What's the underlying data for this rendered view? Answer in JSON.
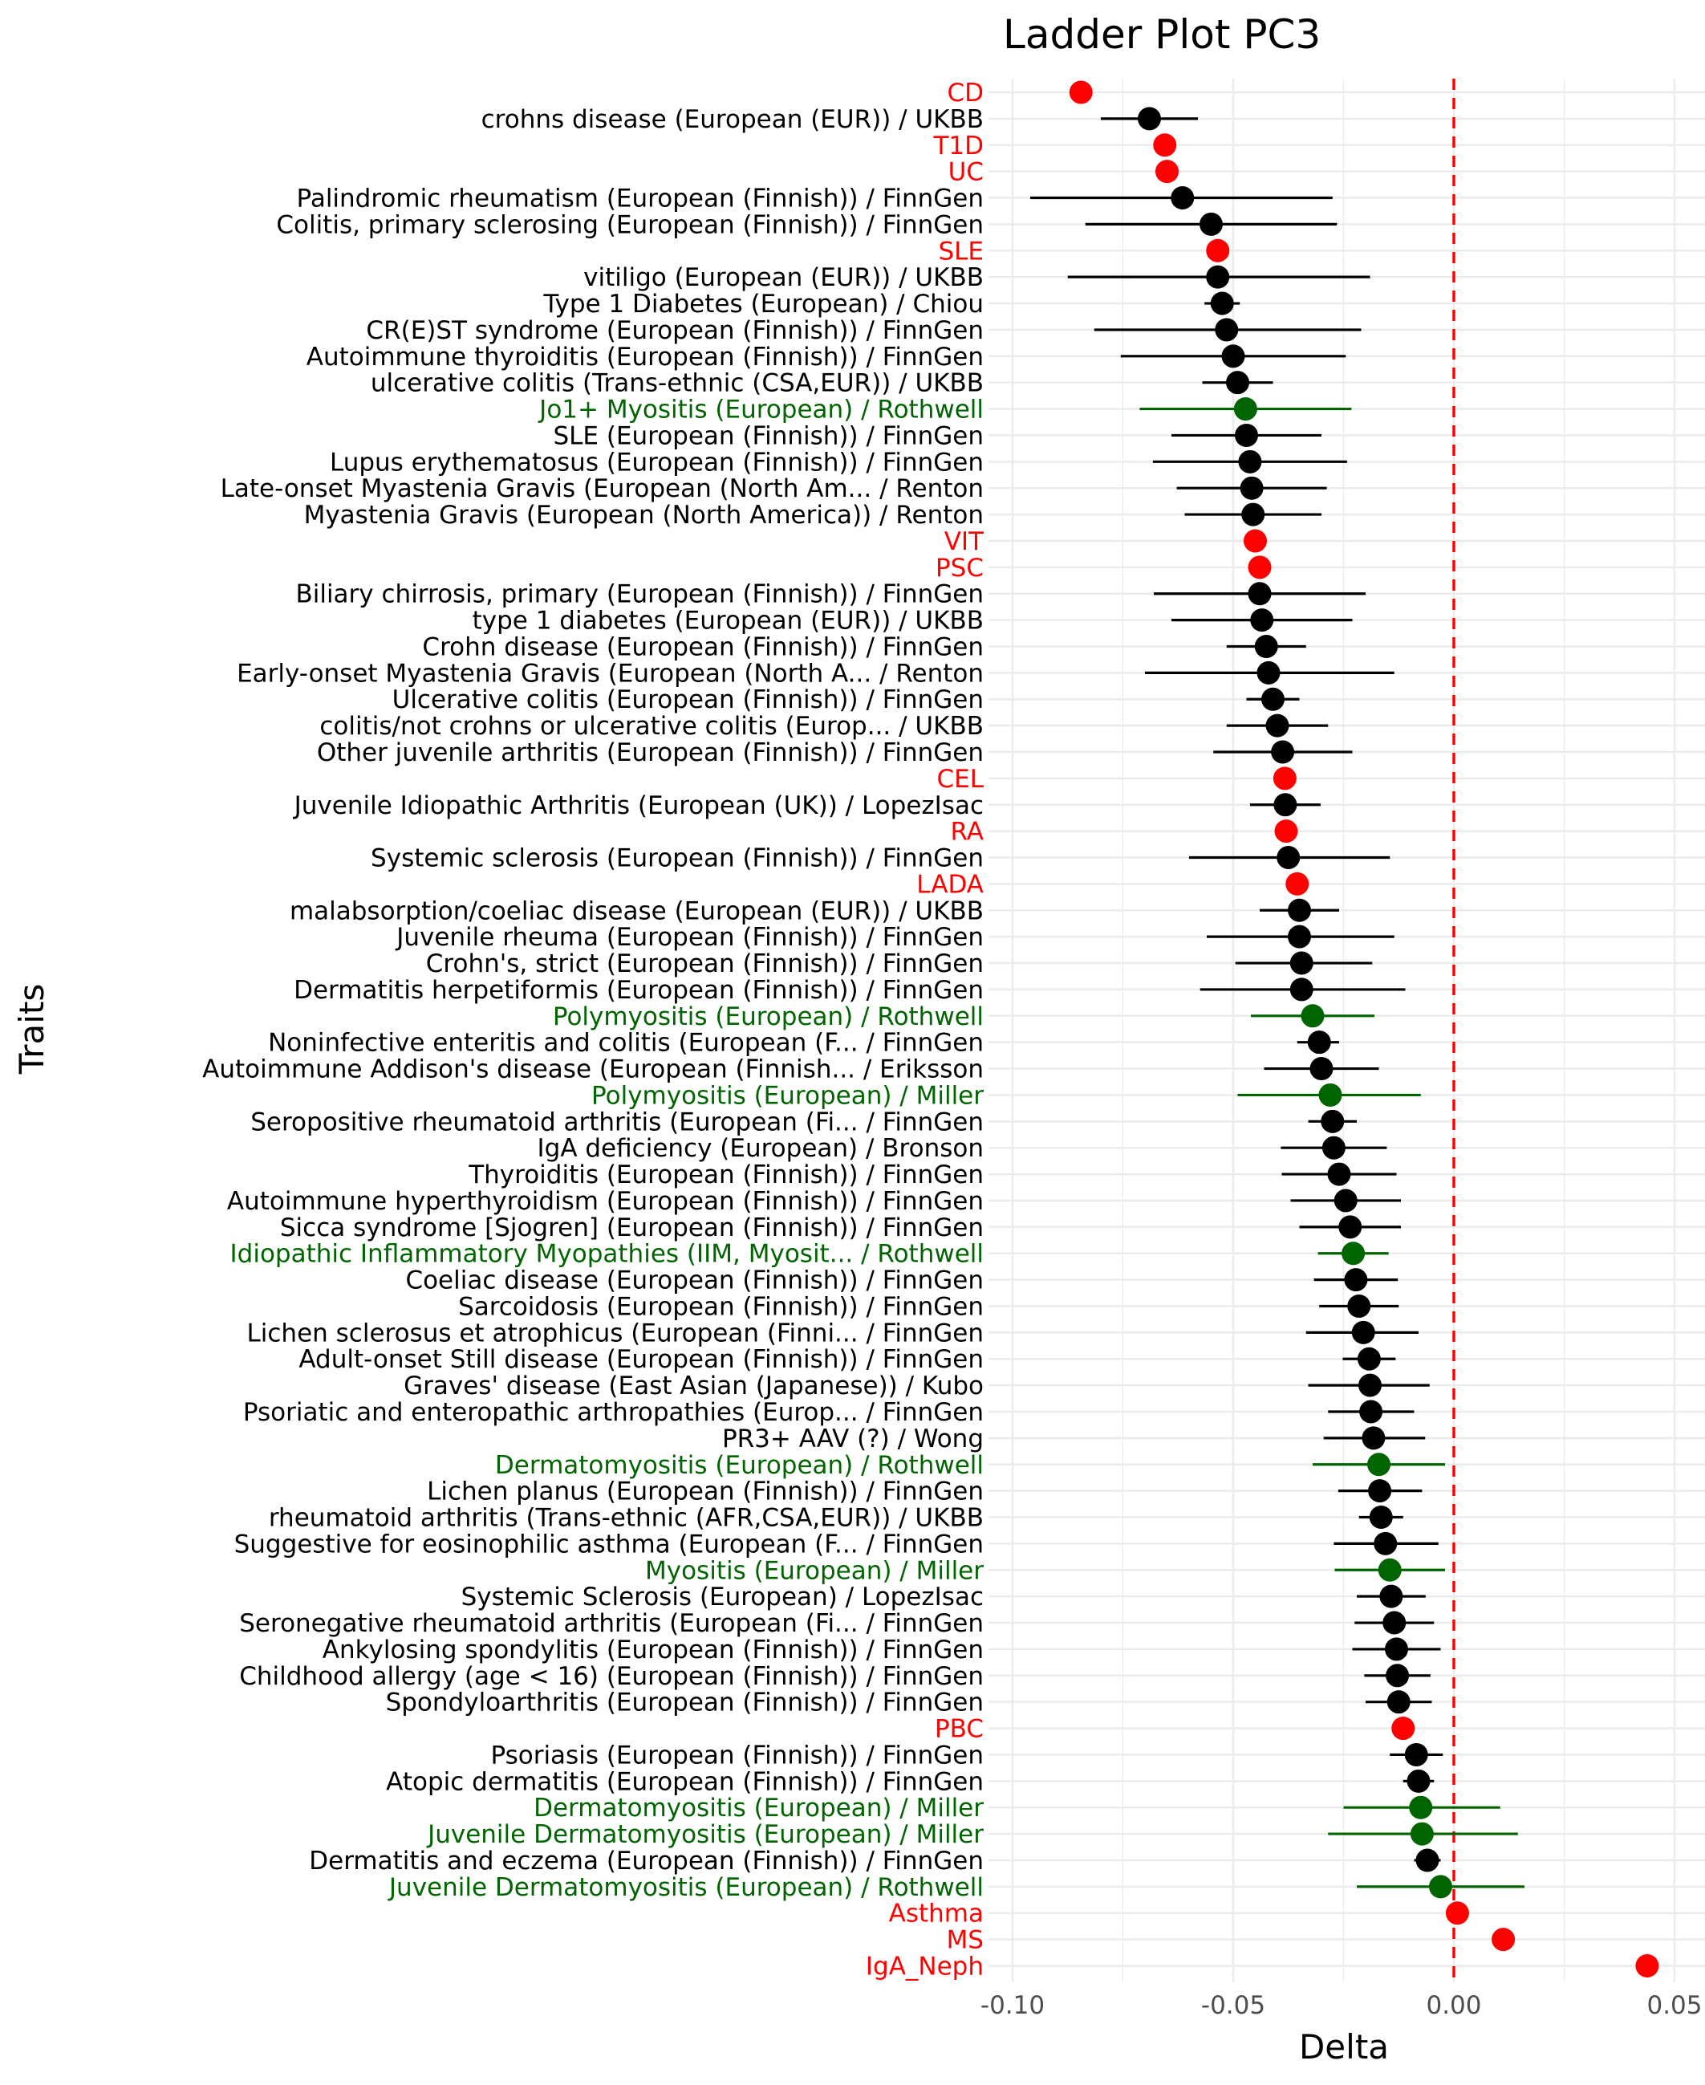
{
  "chart_data": {
    "type": "scatter",
    "title": "Ladder Plot PC3",
    "xlabel": "Delta",
    "ylabel": "Traits",
    "xlim": [
      -0.1,
      0.05
    ],
    "xticks": [
      -0.1,
      -0.05,
      0.0,
      0.05
    ],
    "xtick_labels": [
      "-0.10",
      "-0.05",
      "0.00",
      "0.05"
    ],
    "reference_line": {
      "x": 0.0,
      "color": "#ff0000",
      "style": "dashed"
    },
    "grid": true,
    "group_colors": {
      "red": "#ff0000",
      "black": "#000000",
      "green": "#006400"
    },
    "points": [
      {
        "label": "CD",
        "x": -0.0845,
        "lo": null,
        "hi": null,
        "color": "red"
      },
      {
        "label": "crohns disease (European (EUR)) / UKBB",
        "x": -0.069,
        "lo": -0.08,
        "hi": -0.058,
        "color": "black"
      },
      {
        "label": "T1D",
        "x": -0.0655,
        "lo": null,
        "hi": null,
        "color": "red"
      },
      {
        "label": "UC",
        "x": -0.065,
        "lo": null,
        "hi": null,
        "color": "red"
      },
      {
        "label": "Palindromic rheumatism (European (Finnish)) / FinnGen",
        "x": -0.0615,
        "lo": -0.096,
        "hi": -0.0275,
        "color": "black"
      },
      {
        "label": "Colitis, primary sclerosing (European (Finnish)) / FinnGen",
        "x": -0.055,
        "lo": -0.0835,
        "hi": -0.0265,
        "color": "black"
      },
      {
        "label": "SLE",
        "x": -0.0535,
        "lo": null,
        "hi": null,
        "color": "red"
      },
      {
        "label": "vitiligo (European (EUR)) / UKBB",
        "x": -0.0535,
        "lo": -0.0875,
        "hi": -0.019,
        "color": "black"
      },
      {
        "label": "Type 1 Diabetes (European) / Chiou",
        "x": -0.0525,
        "lo": -0.0565,
        "hi": -0.0485,
        "color": "black"
      },
      {
        "label": "CR(E)ST syndrome (European (Finnish)) / FinnGen",
        "x": -0.0515,
        "lo": -0.0815,
        "hi": -0.021,
        "color": "black"
      },
      {
        "label": "Autoimmune thyroiditis (European (Finnish)) / FinnGen",
        "x": -0.05,
        "lo": -0.0755,
        "hi": -0.0245,
        "color": "black"
      },
      {
        "label": "ulcerative colitis (Trans-ethnic (CSA,EUR)) / UKBB",
        "x": -0.049,
        "lo": -0.057,
        "hi": -0.041,
        "color": "black"
      },
      {
        "label": "Jo1+ Myositis (European) / Rothwell",
        "x": -0.0472,
        "lo": -0.0712,
        "hi": -0.0232,
        "color": "green"
      },
      {
        "label": "SLE (European (Finnish)) / FinnGen",
        "x": -0.047,
        "lo": -0.064,
        "hi": -0.03,
        "color": "black"
      },
      {
        "label": "Lupus erythematosus (European (Finnish)) / FinnGen",
        "x": -0.0462,
        "lo": -0.0682,
        "hi": -0.0242,
        "color": "black"
      },
      {
        "label": "Late-onset Myastenia Gravis (European (North Am... / Renton",
        "x": -0.0458,
        "lo": -0.0628,
        "hi": -0.0288,
        "color": "black"
      },
      {
        "label": "Myastenia Gravis (European (North America)) / Renton",
        "x": -0.0455,
        "lo": -0.061,
        "hi": -0.03,
        "color": "black"
      },
      {
        "label": "VIT",
        "x": -0.045,
        "lo": null,
        "hi": null,
        "color": "red"
      },
      {
        "label": "PSC",
        "x": -0.044,
        "lo": null,
        "hi": null,
        "color": "red"
      },
      {
        "label": "Biliary chirrosis, primary (European (Finnish)) / FinnGen",
        "x": -0.044,
        "lo": -0.068,
        "hi": -0.02,
        "color": "black"
      },
      {
        "label": "type 1 diabetes (European (EUR)) / UKBB",
        "x": -0.0435,
        "lo": -0.064,
        "hi": -0.023,
        "color": "black"
      },
      {
        "label": "Crohn disease (European (Finnish)) / FinnGen",
        "x": -0.0425,
        "lo": -0.0515,
        "hi": -0.0335,
        "color": "black"
      },
      {
        "label": "Early-onset Myastenia Gravis (European (North A... / Renton",
        "x": -0.042,
        "lo": -0.07,
        "hi": -0.0135,
        "color": "black"
      },
      {
        "label": "Ulcerative colitis (European (Finnish)) / FinnGen",
        "x": -0.041,
        "lo": -0.047,
        "hi": -0.035,
        "color": "black"
      },
      {
        "label": "colitis/not crohns or ulcerative colitis (Europ... / UKBB",
        "x": -0.04,
        "lo": -0.0515,
        "hi": -0.0285,
        "color": "black"
      },
      {
        "label": "Other juvenile arthritis (European (Finnish)) / FinnGen",
        "x": -0.0388,
        "lo": -0.0545,
        "hi": -0.023,
        "color": "black"
      },
      {
        "label": "CEL",
        "x": -0.0383,
        "lo": null,
        "hi": null,
        "color": "red"
      },
      {
        "label": "Juvenile Idiopathic Arthritis (European (UK)) / LopezIsac",
        "x": -0.0382,
        "lo": -0.0462,
        "hi": -0.0302,
        "color": "black"
      },
      {
        "label": "RA",
        "x": -0.038,
        "lo": null,
        "hi": null,
        "color": "red"
      },
      {
        "label": "Systemic sclerosis (European (Finnish)) / FinnGen",
        "x": -0.0375,
        "lo": -0.06,
        "hi": -0.0145,
        "color": "black"
      },
      {
        "label": "LADA",
        "x": -0.0355,
        "lo": null,
        "hi": null,
        "color": "red"
      },
      {
        "label": "malabsorption/coeliac disease (European (EUR)) / UKBB",
        "x": -0.035,
        "lo": -0.044,
        "hi": -0.026,
        "color": "black"
      },
      {
        "label": "Juvenile rheuma (European (Finnish)) / FinnGen",
        "x": -0.035,
        "lo": -0.056,
        "hi": -0.0135,
        "color": "black"
      },
      {
        "label": "Crohn's, strict (European (Finnish)) / FinnGen",
        "x": -0.0345,
        "lo": -0.0495,
        "hi": -0.0185,
        "color": "black"
      },
      {
        "label": "Dermatitis herpetiformis (European (Finnish)) / FinnGen",
        "x": -0.0345,
        "lo": -0.0575,
        "hi": -0.011,
        "color": "black"
      },
      {
        "label": "Polymyositis (European) / Rothwell",
        "x": -0.032,
        "lo": -0.046,
        "hi": -0.018,
        "color": "green"
      },
      {
        "label": "Noninfective enteritis and colitis (European (F... / FinnGen",
        "x": -0.0305,
        "lo": -0.0355,
        "hi": -0.026,
        "color": "black"
      },
      {
        "label": "Autoimmune Addison's disease (European (Finnish... / Eriksson",
        "x": -0.03,
        "lo": -0.043,
        "hi": -0.017,
        "color": "black"
      },
      {
        "label": "Polymyositis (European) / Miller",
        "x": -0.028,
        "lo": -0.049,
        "hi": -0.0075,
        "color": "green"
      },
      {
        "label": "Seropositive rheumatoid arthritis (European (Fi... / FinnGen",
        "x": -0.0275,
        "lo": -0.033,
        "hi": -0.022,
        "color": "black"
      },
      {
        "label": "IgA deficiency (European) / Bronson",
        "x": -0.0272,
        "lo": -0.0392,
        "hi": -0.0152,
        "color": "black"
      },
      {
        "label": "Thyroiditis (European (Finnish)) / FinnGen",
        "x": -0.026,
        "lo": -0.039,
        "hi": -0.013,
        "color": "black"
      },
      {
        "label": "Autoimmune hyperthyroidism (European (Finnish)) / FinnGen",
        "x": -0.0245,
        "lo": -0.037,
        "hi": -0.012,
        "color": "black"
      },
      {
        "label": "Sicca syndrome [Sjogren] (European (Finnish)) / FinnGen",
        "x": -0.0235,
        "lo": -0.035,
        "hi": -0.012,
        "color": "black"
      },
      {
        "label": "Idiopathic Inflammatory Myopathies (IIM, Myosit... / Rothwell",
        "x": -0.0228,
        "lo": -0.0308,
        "hi": -0.0148,
        "color": "green"
      },
      {
        "label": "Coeliac disease (European (Finnish)) / FinnGen",
        "x": -0.0222,
        "lo": -0.0317,
        "hi": -0.0127,
        "color": "black"
      },
      {
        "label": "Sarcoidosis (European (Finnish)) / FinnGen",
        "x": -0.0215,
        "lo": -0.0305,
        "hi": -0.0125,
        "color": "black"
      },
      {
        "label": "Lichen sclerosus et atrophicus (European (Finni... / FinnGen",
        "x": -0.0205,
        "lo": -0.0335,
        "hi": -0.008,
        "color": "black"
      },
      {
        "label": "Adult-onset Still disease (European (Finnish)) / FinnGen",
        "x": -0.0192,
        "lo": -0.0252,
        "hi": -0.0132,
        "color": "black"
      },
      {
        "label": "Graves' disease (East Asian (Japanese)) / Kubo",
        "x": -0.019,
        "lo": -0.033,
        "hi": -0.0055,
        "color": "black"
      },
      {
        "label": "Psoriatic and enteropathic arthropathies (Europ... / FinnGen",
        "x": -0.0188,
        "lo": -0.0285,
        "hi": -0.009,
        "color": "black"
      },
      {
        "label": "PR3+ AAV (?) / Wong",
        "x": -0.0182,
        "lo": -0.0295,
        "hi": -0.0065,
        "color": "black"
      },
      {
        "label": "Dermatomyositis (European) / Rothwell",
        "x": -0.017,
        "lo": -0.032,
        "hi": -0.002,
        "color": "green"
      },
      {
        "label": "Lichen planus (European (Finnish)) / FinnGen",
        "x": -0.0168,
        "lo": -0.0262,
        "hi": -0.0072,
        "color": "black"
      },
      {
        "label": "rheumatoid arthritis (Trans-ethnic (AFR,CSA,EUR)) / UKBB",
        "x": -0.0165,
        "lo": -0.0215,
        "hi": -0.0115,
        "color": "black"
      },
      {
        "label": "Suggestive for eosinophilic asthma (European (F... / FinnGen",
        "x": -0.0155,
        "lo": -0.0272,
        "hi": -0.0035,
        "color": "black"
      },
      {
        "label": "Myositis (European) / Miller",
        "x": -0.0145,
        "lo": -0.027,
        "hi": -0.002,
        "color": "green"
      },
      {
        "label": "Systemic Sclerosis (European) / LopezIsac",
        "x": -0.0142,
        "lo": -0.022,
        "hi": -0.0064,
        "color": "black"
      },
      {
        "label": "Seronegative rheumatoid arthritis (European (Fi... / FinnGen",
        "x": -0.0135,
        "lo": -0.0225,
        "hi": -0.0045,
        "color": "black"
      },
      {
        "label": "Ankylosing spondylitis (European (Finnish)) / FinnGen",
        "x": -0.013,
        "lo": -0.023,
        "hi": -0.003,
        "color": "black"
      },
      {
        "label": "Childhood allergy (age < 16) (European (Finnish)) / FinnGen",
        "x": -0.0128,
        "lo": -0.0203,
        "hi": -0.0053,
        "color": "black"
      },
      {
        "label": "Spondyloarthritis (European (Finnish)) / FinnGen",
        "x": -0.0125,
        "lo": -0.02,
        "hi": -0.005,
        "color": "black"
      },
      {
        "label": "PBC",
        "x": -0.0115,
        "lo": null,
        "hi": null,
        "color": "red"
      },
      {
        "label": "Psoriasis (European (Finnish)) / FinnGen",
        "x": -0.0085,
        "lo": -0.0145,
        "hi": -0.0025,
        "color": "black"
      },
      {
        "label": "Atopic dermatitis (European (Finnish)) / FinnGen",
        "x": -0.008,
        "lo": -0.0115,
        "hi": -0.0045,
        "color": "black"
      },
      {
        "label": "Dermatomyositis (European) / Miller",
        "x": -0.0075,
        "lo": -0.025,
        "hi": 0.0105,
        "color": "green"
      },
      {
        "label": "Juvenile Dermatomyositis (European) / Miller",
        "x": -0.0072,
        "lo": -0.0285,
        "hi": 0.0145,
        "color": "green"
      },
      {
        "label": "Dermatitis and eczema (European (Finnish)) / FinnGen",
        "x": -0.006,
        "lo": -0.009,
        "hi": -0.003,
        "color": "black"
      },
      {
        "label": "Juvenile Dermatomyositis (European) / Rothwell",
        "x": -0.003,
        "lo": -0.022,
        "hi": 0.016,
        "color": "green"
      },
      {
        "label": "Asthma",
        "x": 0.0008,
        "lo": null,
        "hi": null,
        "color": "red"
      },
      {
        "label": "MS",
        "x": 0.0112,
        "lo": null,
        "hi": null,
        "color": "red"
      },
      {
        "label": "IgA_Neph",
        "x": 0.0438,
        "lo": null,
        "hi": null,
        "color": "red"
      }
    ]
  }
}
